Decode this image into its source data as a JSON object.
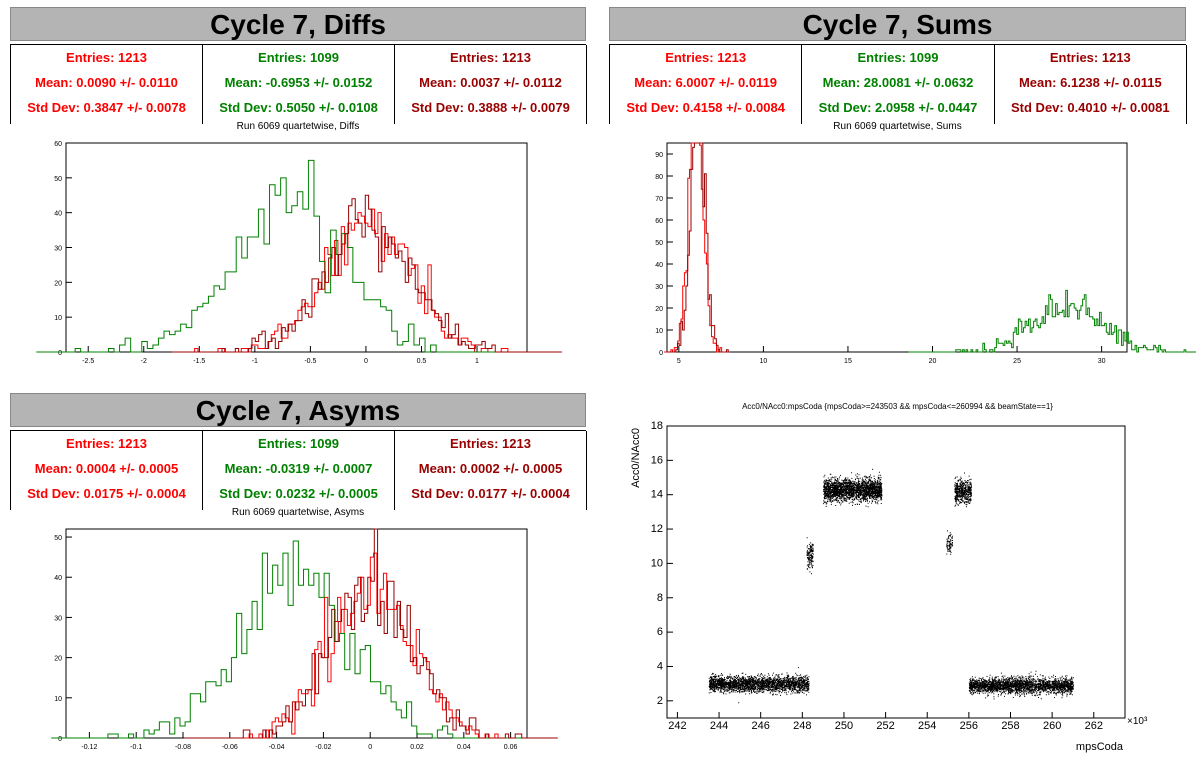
{
  "colors": {
    "red": "#ff0000",
    "green": "#008000",
    "dred": "#990000",
    "title_bg": "#b4b4b4"
  },
  "panels": {
    "diffs": {
      "title": "Cycle 7, Diffs",
      "subtitle": "Run 6069 quartetwise, Diffs",
      "stats": [
        {
          "entries": "Entries: 1213",
          "mean": "Mean: 0.0090 +/- 0.0110",
          "std": "Std Dev: 0.3847 +/- 0.0078"
        },
        {
          "entries": "Entries: 1099",
          "mean": "Mean: -0.6953 +/- 0.0152",
          "std": "Std Dev: 0.5050 +/- 0.0108"
        },
        {
          "entries": "Entries: 1213",
          "mean": "Mean: 0.0037 +/- 0.0112",
          "std": "Std Dev: 0.3888 +/- 0.0079"
        }
      ]
    },
    "sums": {
      "title": "Cycle 7, Sums",
      "subtitle": "Run 6069 quartetwise, Sums",
      "stats": [
        {
          "entries": "Entries: 1213",
          "mean": "Mean: 6.0007 +/- 0.0119",
          "std": "Std Dev: 0.4158 +/- 0.0084"
        },
        {
          "entries": "Entries: 1099",
          "mean": "Mean: 28.0081 +/- 0.0632",
          "std": "Std Dev: 2.0958 +/- 0.0447"
        },
        {
          "entries": "Entries: 1213",
          "mean": "Mean: 6.1238 +/- 0.0115",
          "std": "Std Dev: 0.4010 +/- 0.0081"
        }
      ]
    },
    "asyms": {
      "title": "Cycle 7, Asyms",
      "subtitle": "Run 6069 quartetwise, Asyms",
      "stats": [
        {
          "entries": "Entries: 1213",
          "mean": "Mean: 0.0004 +/- 0.0005",
          "std": "Std Dev: 0.0175 +/- 0.0004"
        },
        {
          "entries": "Entries: 1099",
          "mean": "Mean: -0.0319 +/- 0.0007",
          "std": "Std Dev: 0.0232 +/- 0.0005"
        },
        {
          "entries": "Entries: 1213",
          "mean": "Mean: 0.0002 +/- 0.0005",
          "std": "Std Dev: 0.0177 +/- 0.0004"
        }
      ]
    },
    "scatter": {
      "title": "Acc0/NAcc0:mpsCoda {mpsCoda>=243503 && mpsCoda<=260994 && beamState==1}",
      "xlabel": "mpsCoda",
      "ylabel": "Acc0/NAcc0",
      "xexp": "×10³"
    }
  },
  "chart_data": [
    {
      "type": "histogram",
      "name": "diffs",
      "xlim": [
        -2.7,
        1.45
      ],
      "ylim": [
        0,
        60
      ],
      "xticks": [
        -2.5,
        -2,
        -1.5,
        -1,
        -0.5,
        0,
        0.5,
        1
      ],
      "yticks": [
        0,
        10,
        20,
        30,
        40,
        50,
        60
      ],
      "series": [
        {
          "color": "red",
          "mean": 0.009,
          "std": 0.3847,
          "entries": 1213,
          "bin_width": 0.03
        },
        {
          "color": "green",
          "mean": -0.6953,
          "std": 0.505,
          "entries": 1099,
          "bin_width": 0.05
        },
        {
          "color": "dred",
          "mean": 0.0037,
          "std": 0.3888,
          "entries": 1213,
          "bin_width": 0.03
        }
      ]
    },
    {
      "type": "histogram",
      "name": "sums",
      "xlim": [
        4.3,
        31.5
      ],
      "ylim": [
        0,
        95
      ],
      "xticks": [
        5,
        10,
        15,
        20,
        25,
        30
      ],
      "yticks": [
        0,
        10,
        20,
        30,
        40,
        50,
        60,
        70,
        80,
        90
      ],
      "series": [
        {
          "color": "red",
          "mean": 6.0007,
          "std": 0.4158,
          "entries": 1213,
          "bin_width": 0.1
        },
        {
          "color": "green",
          "mean": 28.0081,
          "std": 2.0958,
          "entries": 1099,
          "bin_width": 0.1
        },
        {
          "color": "dred",
          "mean": 6.1238,
          "std": 0.401,
          "entries": 1213,
          "bin_width": 0.1
        }
      ]
    },
    {
      "type": "histogram",
      "name": "asyms",
      "xlim": [
        -0.13,
        0.067
      ],
      "ylim": [
        0,
        52
      ],
      "xticks": [
        -0.12,
        -0.1,
        -0.08,
        -0.06,
        -0.04,
        -0.02,
        0,
        0.02,
        0.04,
        0.06
      ],
      "yticks": [
        0,
        10,
        20,
        30,
        40,
        50
      ],
      "series": [
        {
          "color": "red",
          "mean": 0.0004,
          "std": 0.0175,
          "entries": 1213,
          "bin_width": 0.0014
        },
        {
          "color": "green",
          "mean": -0.0319,
          "std": 0.0232,
          "entries": 1099,
          "bin_width": 0.0022
        },
        {
          "color": "dred",
          "mean": 0.0002,
          "std": 0.0177,
          "entries": 1213,
          "bin_width": 0.0014
        }
      ]
    },
    {
      "type": "scatter",
      "name": "scatter",
      "xlim": [
        241.5,
        263.5
      ],
      "ylim": [
        1,
        18
      ],
      "xticks": [
        242,
        244,
        246,
        248,
        250,
        252,
        254,
        256,
        258,
        260,
        262
      ],
      "yticks": [
        2,
        4,
        6,
        8,
        10,
        12,
        14,
        16,
        18
      ],
      "clusters": [
        {
          "x": [
            243.5,
            248.3
          ],
          "y": 3.0,
          "dy": 0.5,
          "n": 2400
        },
        {
          "x": [
            248.2,
            248.5
          ],
          "y": 10.5,
          "dy": 0.9,
          "n": 150
        },
        {
          "x": [
            249.0,
            251.8
          ],
          "y": 14.3,
          "dy": 0.7,
          "n": 2200
        },
        {
          "x": [
            254.9,
            255.2
          ],
          "y": 11.2,
          "dy": 0.6,
          "n": 80
        },
        {
          "x": [
            255.3,
            256.1
          ],
          "y": 14.2,
          "dy": 0.8,
          "n": 500
        },
        {
          "x": [
            256.0,
            261.0
          ],
          "y": 2.9,
          "dy": 0.5,
          "n": 2600
        }
      ]
    }
  ]
}
